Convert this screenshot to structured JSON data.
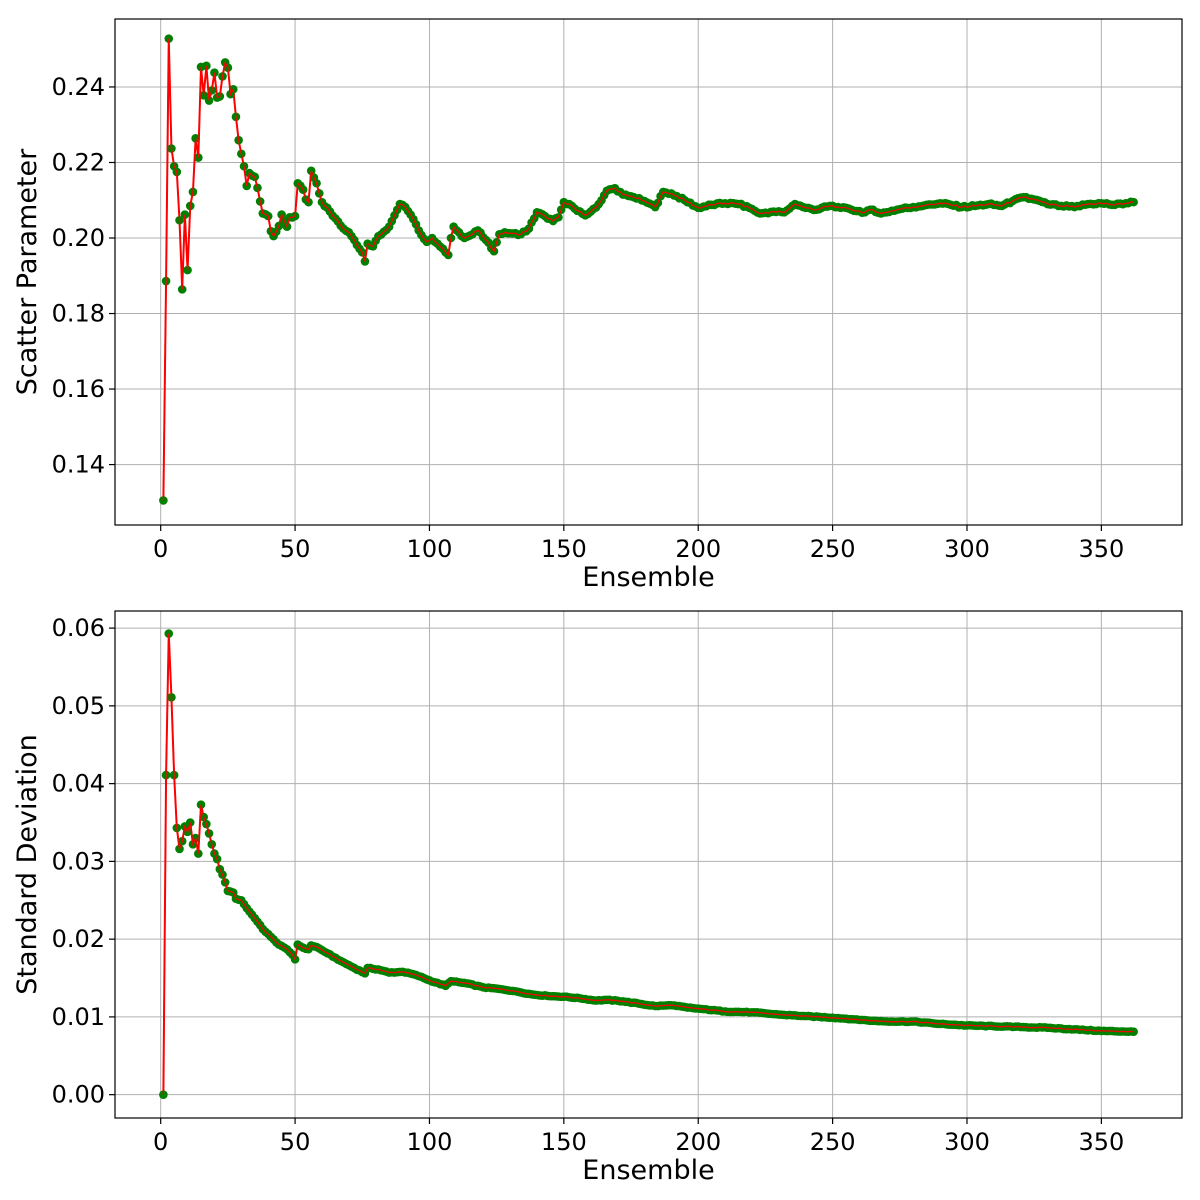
{
  "chart_data": [
    {
      "type": "line",
      "xlabel": "Ensemble",
      "ylabel": "Scatter Parameter",
      "xlim": [
        -17,
        380
      ],
      "ylim": [
        0.124,
        0.258
      ],
      "xticks": [
        0,
        50,
        100,
        150,
        200,
        250,
        300,
        350
      ],
      "yticks": [
        0.14,
        0.16,
        0.18,
        0.2,
        0.22,
        0.24
      ],
      "ytick_labels": [
        "0.14",
        "0.16",
        "0.18",
        "0.20",
        "0.22",
        "0.24"
      ],
      "grid": true,
      "line_color": "#ff0000",
      "marker_color": "#008000",
      "x_start": 1,
      "x_end": 362,
      "series_keypoints": [
        [
          1,
          0.1305
        ],
        [
          2,
          0.1886
        ],
        [
          3,
          0.2528
        ],
        [
          4,
          0.2237
        ],
        [
          5,
          0.219
        ],
        [
          6,
          0.2175
        ],
        [
          7,
          0.2047
        ],
        [
          8,
          0.1864
        ],
        [
          9,
          0.2062
        ],
        [
          10,
          0.1915
        ],
        [
          11,
          0.2085
        ],
        [
          12,
          0.2122
        ],
        [
          13,
          0.2264
        ],
        [
          14,
          0.2213
        ],
        [
          15,
          0.2453
        ],
        [
          16,
          0.2378
        ],
        [
          17,
          0.2456
        ],
        [
          18,
          0.2364
        ],
        [
          19,
          0.2391
        ],
        [
          20,
          0.2438
        ],
        [
          21,
          0.2372
        ],
        [
          22,
          0.2375
        ],
        [
          23,
          0.2428
        ],
        [
          24,
          0.2465
        ],
        [
          25,
          0.2451
        ],
        [
          26,
          0.2381
        ],
        [
          27,
          0.2394
        ],
        [
          28,
          0.2321
        ],
        [
          29,
          0.2259
        ],
        [
          30,
          0.2223
        ],
        [
          31,
          0.219
        ],
        [
          32,
          0.2138
        ],
        [
          33,
          0.2172
        ],
        [
          35,
          0.2162
        ],
        [
          36,
          0.2133
        ],
        [
          37,
          0.2097
        ],
        [
          38,
          0.2065
        ],
        [
          40,
          0.2058
        ],
        [
          41,
          0.2018
        ],
        [
          42,
          0.2005
        ],
        [
          44,
          0.2032
        ],
        [
          45,
          0.2062
        ],
        [
          47,
          0.203
        ],
        [
          48,
          0.2055
        ],
        [
          50,
          0.2058
        ],
        [
          51,
          0.2145
        ],
        [
          53,
          0.2128
        ],
        [
          54,
          0.2102
        ],
        [
          55,
          0.2095
        ],
        [
          56,
          0.2178
        ],
        [
          58,
          0.2145
        ],
        [
          60,
          0.2095
        ],
        [
          63,
          0.207
        ],
        [
          65,
          0.2052
        ],
        [
          68,
          0.2025
        ],
        [
          70,
          0.2015
        ],
        [
          72,
          0.1995
        ],
        [
          75,
          0.1962
        ],
        [
          76,
          0.1938
        ],
        [
          77,
          0.1985
        ],
        [
          79,
          0.1978
        ],
        [
          81,
          0.2005
        ],
        [
          85,
          0.203
        ],
        [
          87,
          0.206
        ],
        [
          89,
          0.209
        ],
        [
          91,
          0.2082
        ],
        [
          94,
          0.205
        ],
        [
          96,
          0.202
        ],
        [
          99,
          0.199
        ],
        [
          101,
          0.2
        ],
        [
          103,
          0.1985
        ],
        [
          106,
          0.1962
        ],
        [
          107,
          0.1955
        ],
        [
          108,
          0.2
        ],
        [
          109,
          0.203
        ],
        [
          111,
          0.2015
        ],
        [
          113,
          0.2
        ],
        [
          116,
          0.201
        ],
        [
          118,
          0.202
        ],
        [
          121,
          0.1995
        ],
        [
          124,
          0.1965
        ],
        [
          126,
          0.201
        ],
        [
          128,
          0.2015
        ],
        [
          131,
          0.2012
        ],
        [
          134,
          0.201
        ],
        [
          137,
          0.2025
        ],
        [
          140,
          0.2068
        ],
        [
          143,
          0.2058
        ],
        [
          146,
          0.2045
        ],
        [
          148,
          0.2055
        ],
        [
          150,
          0.2095
        ],
        [
          152,
          0.209
        ],
        [
          155,
          0.2072
        ],
        [
          158,
          0.206
        ],
        [
          160,
          0.207
        ],
        [
          163,
          0.209
        ],
        [
          166,
          0.2125
        ],
        [
          169,
          0.2132
        ],
        [
          172,
          0.2115
        ],
        [
          176,
          0.2108
        ],
        [
          180,
          0.2098
        ],
        [
          184,
          0.2082
        ],
        [
          187,
          0.2122
        ],
        [
          190,
          0.2118
        ],
        [
          195,
          0.21
        ],
        [
          200,
          0.208
        ],
        [
          205,
          0.2088
        ],
        [
          210,
          0.2092
        ],
        [
          215,
          0.209
        ],
        [
          219,
          0.208
        ],
        [
          223,
          0.2065
        ],
        [
          228,
          0.207
        ],
        [
          232,
          0.2068
        ],
        [
          236,
          0.209
        ],
        [
          240,
          0.208
        ],
        [
          244,
          0.2075
        ],
        [
          249,
          0.2085
        ],
        [
          253,
          0.208
        ],
        [
          257,
          0.2075
        ],
        [
          262,
          0.2068
        ],
        [
          265,
          0.2075
        ],
        [
          268,
          0.2065
        ],
        [
          272,
          0.2072
        ],
        [
          276,
          0.2078
        ],
        [
          280,
          0.2082
        ],
        [
          285,
          0.2088
        ],
        [
          290,
          0.2092
        ],
        [
          294,
          0.2088
        ],
        [
          298,
          0.2082
        ],
        [
          303,
          0.2085
        ],
        [
          308,
          0.209
        ],
        [
          313,
          0.2085
        ],
        [
          317,
          0.2098
        ],
        [
          321,
          0.2108
        ],
        [
          325,
          0.2102
        ],
        [
          330,
          0.209
        ],
        [
          335,
          0.2085
        ],
        [
          340,
          0.2082
        ],
        [
          345,
          0.209
        ],
        [
          350,
          0.2092
        ],
        [
          355,
          0.2088
        ],
        [
          359,
          0.2092
        ],
        [
          362,
          0.2095
        ]
      ]
    },
    {
      "type": "line",
      "xlabel": "Ensemble",
      "ylabel": "Standard Deviation",
      "xlim": [
        -17,
        380
      ],
      "ylim": [
        -0.003,
        0.0622
      ],
      "xticks": [
        0,
        50,
        100,
        150,
        200,
        250,
        300,
        350
      ],
      "yticks": [
        0.0,
        0.01,
        0.02,
        0.03,
        0.04,
        0.05,
        0.06
      ],
      "ytick_labels": [
        "0.00",
        "0.01",
        "0.02",
        "0.03",
        "0.04",
        "0.05",
        "0.06"
      ],
      "grid": true,
      "line_color": "#ff0000",
      "marker_color": "#008000",
      "x_start": 1,
      "x_end": 362,
      "series_keypoints": [
        [
          1,
          0.0
        ],
        [
          2,
          0.0411
        ],
        [
          3,
          0.0593
        ],
        [
          4,
          0.0511
        ],
        [
          5,
          0.0411
        ],
        [
          6,
          0.0343
        ],
        [
          7,
          0.0316
        ],
        [
          8,
          0.0326
        ],
        [
          9,
          0.0345
        ],
        [
          10,
          0.0338
        ],
        [
          11,
          0.035
        ],
        [
          12,
          0.0322
        ],
        [
          13,
          0.033
        ],
        [
          14,
          0.031
        ],
        [
          15,
          0.0373
        ],
        [
          16,
          0.0357
        ],
        [
          17,
          0.0348
        ],
        [
          18,
          0.0336
        ],
        [
          19,
          0.0322
        ],
        [
          20,
          0.031
        ],
        [
          21,
          0.0303
        ],
        [
          22,
          0.029
        ],
        [
          23,
          0.0283
        ],
        [
          24,
          0.0273
        ],
        [
          25,
          0.0262
        ],
        [
          27,
          0.026
        ],
        [
          28,
          0.0252
        ],
        [
          30,
          0.025
        ],
        [
          32,
          0.024
        ],
        [
          35,
          0.0227
        ],
        [
          38,
          0.0213
        ],
        [
          41,
          0.0203
        ],
        [
          44,
          0.0193
        ],
        [
          47,
          0.0187
        ],
        [
          49,
          0.018
        ],
        [
          50,
          0.0174
        ],
        [
          51,
          0.0193
        ],
        [
          53,
          0.0189
        ],
        [
          55,
          0.0187
        ],
        [
          56,
          0.0192
        ],
        [
          58,
          0.019
        ],
        [
          62,
          0.0182
        ],
        [
          67,
          0.0172
        ],
        [
          72,
          0.0163
        ],
        [
          76,
          0.0156
        ],
        [
          77,
          0.0163
        ],
        [
          81,
          0.0161
        ],
        [
          85,
          0.0157
        ],
        [
          90,
          0.0158
        ],
        [
          95,
          0.0154
        ],
        [
          100,
          0.0147
        ],
        [
          106,
          0.014
        ],
        [
          108,
          0.0146
        ],
        [
          114,
          0.0143
        ],
        [
          120,
          0.0138
        ],
        [
          126,
          0.0136
        ],
        [
          132,
          0.0133
        ],
        [
          138,
          0.0129
        ],
        [
          144,
          0.0127
        ],
        [
          150,
          0.0126
        ],
        [
          156,
          0.0124
        ],
        [
          162,
          0.0121
        ],
        [
          166,
          0.0122
        ],
        [
          172,
          0.012
        ],
        [
          178,
          0.0117
        ],
        [
          184,
          0.0114
        ],
        [
          190,
          0.0115
        ],
        [
          196,
          0.0112
        ],
        [
          202,
          0.011
        ],
        [
          210,
          0.0107
        ],
        [
          220,
          0.0106
        ],
        [
          230,
          0.0103
        ],
        [
          240,
          0.0101
        ],
        [
          250,
          0.0099
        ],
        [
          258,
          0.0097
        ],
        [
          265,
          0.0095
        ],
        [
          272,
          0.0094
        ],
        [
          280,
          0.0094
        ],
        [
          290,
          0.0091
        ],
        [
          300,
          0.0089
        ],
        [
          310,
          0.0088
        ],
        [
          320,
          0.0087
        ],
        [
          330,
          0.0086
        ],
        [
          340,
          0.0084
        ],
        [
          350,
          0.0082
        ],
        [
          362,
          0.0081
        ]
      ]
    }
  ]
}
